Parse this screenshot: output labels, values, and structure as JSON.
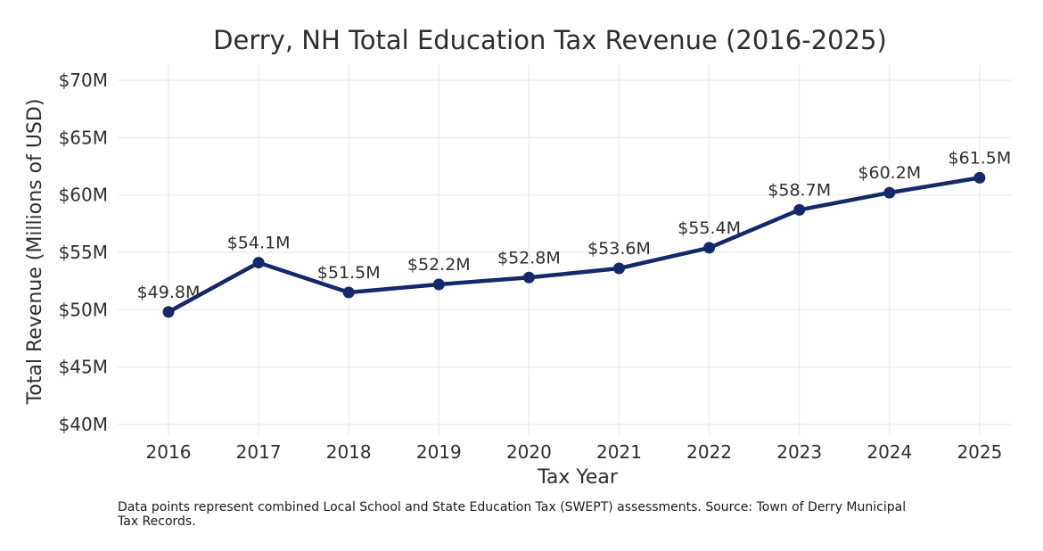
{
  "chart_data": {
    "type": "line",
    "title": "Derry, NH Total Education Tax Revenue (2016-2025)",
    "xlabel": "Tax Year",
    "ylabel": "Total Revenue (Millions of USD)",
    "categories": [
      "2016",
      "2017",
      "2018",
      "2019",
      "2020",
      "2021",
      "2022",
      "2023",
      "2024",
      "2025"
    ],
    "series": [
      {
        "values": [
          49.8,
          54.1,
          51.5,
          52.2,
          52.8,
          53.6,
          55.4,
          58.7,
          60.2,
          61.5
        ]
      }
    ],
    "data_labels": [
      "$49.8M",
      "$54.1M",
      "$51.5M",
      "$52.2M",
      "$52.8M",
      "$53.6M",
      "$55.4M",
      "$58.7M",
      "$60.2M",
      "$61.5M"
    ],
    "ylim": [
      40,
      70
    ],
    "yticks": [
      40,
      45,
      50,
      55,
      60,
      65,
      70
    ],
    "ytick_labels": [
      "$40M",
      "$45M",
      "$50M",
      "$55M",
      "$60M",
      "$65M",
      "$70M"
    ],
    "grid": true,
    "line_color": "#14296b",
    "grid_color": "#e6e6e6"
  },
  "caption": "Data points represent combined Local School and State Education Tax (SWEPT) assessments. Source: Town of Derry Municipal Tax Records."
}
